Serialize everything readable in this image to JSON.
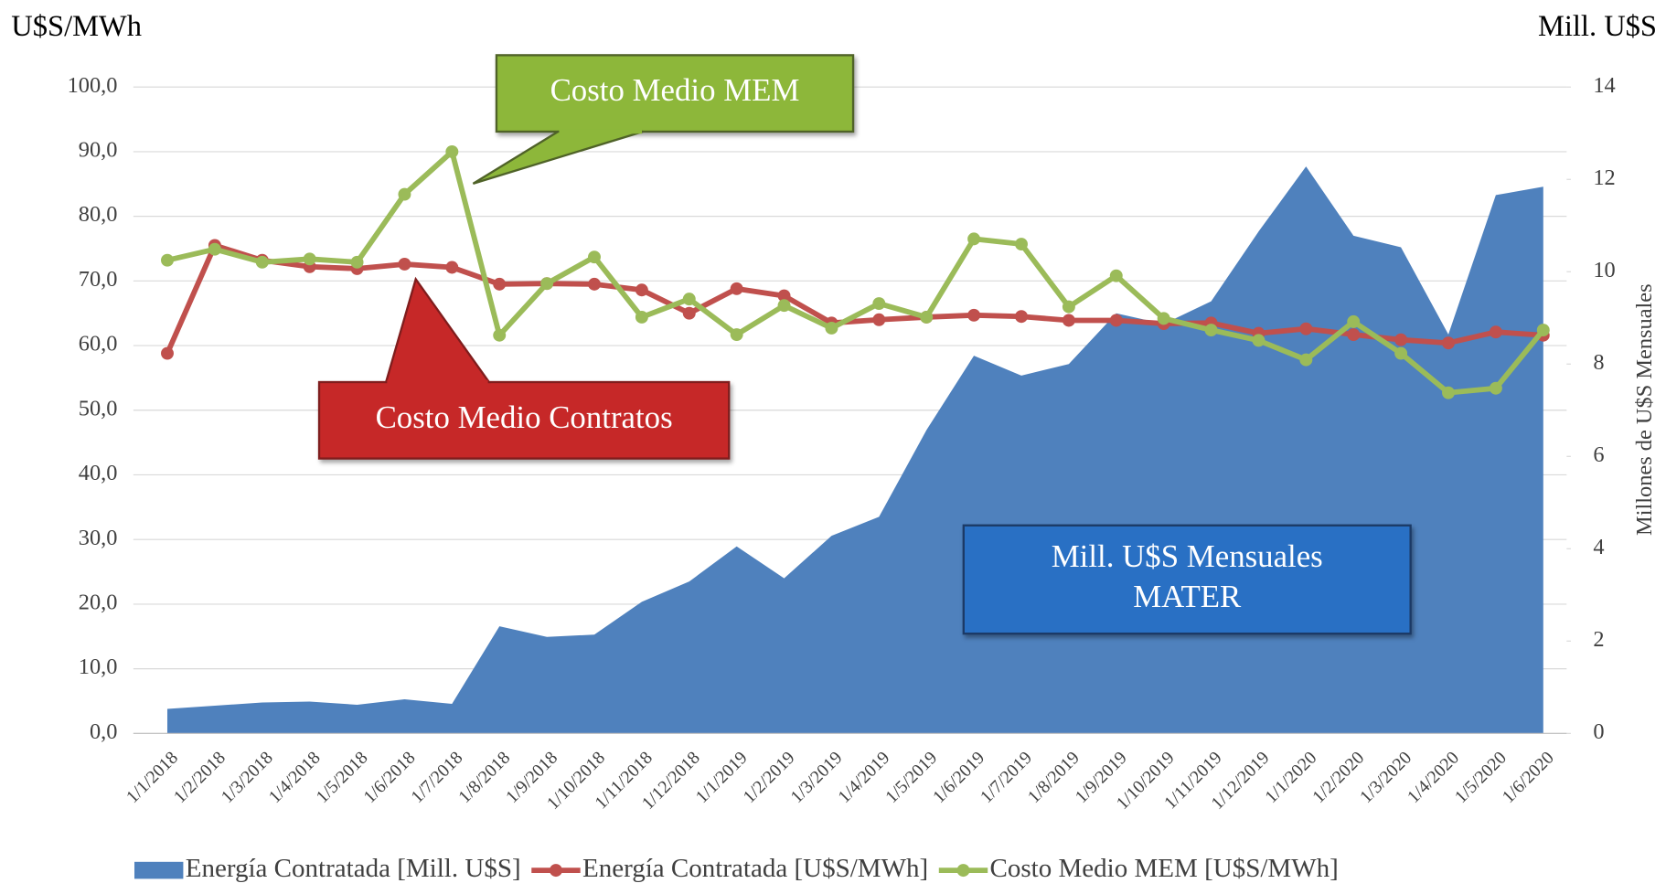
{
  "chart_data": {
    "type": "combo",
    "y_label": "U$S/MWh",
    "y2_top_label": "Mill. U$S",
    "y2_label": "Millones  de U$S Mensuales",
    "categories": [
      "1/1/2018",
      "1/2/2018",
      "1/3/2018",
      "1/4/2018",
      "1/5/2018",
      "1/6/2018",
      "1/7/2018",
      "1/8/2018",
      "1/9/2018",
      "1/10/2018",
      "1/11/2018",
      "1/12/2018",
      "1/1/2019",
      "1/2/2019",
      "1/3/2019",
      "1/4/2019",
      "1/5/2019",
      "1/6/2019",
      "1/7/2019",
      "1/8/2019",
      "1/9/2019",
      "1/10/2019",
      "1/11/2019",
      "1/12/2019",
      "1/1/2020",
      "1/2/2020",
      "1/3/2020",
      "1/4/2020",
      "1/5/2020",
      "1/6/2020"
    ],
    "series": [
      {
        "name": "Energía Contratada [Mill. U$S]",
        "type": "area",
        "axis": "y2",
        "color": "#4f81bd",
        "values": [
          0.53,
          0.6,
          0.67,
          0.69,
          0.62,
          0.74,
          0.64,
          2.32,
          2.09,
          2.14,
          2.85,
          3.29,
          4.05,
          3.36,
          4.28,
          4.69,
          6.57,
          8.18,
          7.75,
          8.0,
          9.1,
          8.87,
          9.36,
          10.87,
          12.28,
          10.78,
          10.53,
          8.64,
          11.66,
          11.84
        ]
      },
      {
        "name": "Energía Contratada [U$S/MWh]",
        "type": "line",
        "axis": "y",
        "color": "#c0504d",
        "values": [
          58.8,
          75.5,
          73.2,
          72.2,
          71.9,
          72.6,
          72.1,
          69.5,
          69.6,
          69.5,
          68.6,
          65.0,
          68.8,
          67.7,
          63.5,
          64.0,
          64.4,
          64.7,
          64.5,
          63.9,
          63.9,
          63.4,
          63.5,
          61.9,
          62.6,
          61.7,
          60.9,
          60.4,
          62.1,
          61.6
        ]
      },
      {
        "name": "Costo Medio MEM [U$S/MWh]",
        "type": "line",
        "axis": "y",
        "color": "#9bbb59",
        "values": [
          73.2,
          74.9,
          72.9,
          73.4,
          72.9,
          83.4,
          90.0,
          61.6,
          69.6,
          73.7,
          64.4,
          67.2,
          61.7,
          66.2,
          62.7,
          66.5,
          64.4,
          76.5,
          75.7,
          66.0,
          70.8,
          64.2,
          62.4,
          60.8,
          57.8,
          63.7,
          58.8,
          52.7,
          53.4,
          62.4
        ]
      }
    ],
    "ylim": [
      0,
      100
    ],
    "yticks": [
      {
        "value": 0,
        "label": "0,0"
      },
      {
        "value": 10,
        "label": "10,0"
      },
      {
        "value": 20,
        "label": "20,0"
      },
      {
        "value": 30,
        "label": "30,0"
      },
      {
        "value": 40,
        "label": "40,0"
      },
      {
        "value": 50,
        "label": "50,0"
      },
      {
        "value": 60,
        "label": "60,0"
      },
      {
        "value": 70,
        "label": "70,0"
      },
      {
        "value": 80,
        "label": "80,0"
      },
      {
        "value": 90,
        "label": "90,0"
      },
      {
        "value": 100,
        "label": "100,0"
      }
    ],
    "y2lim": [
      0,
      14
    ],
    "y2ticks": [
      0,
      2,
      4,
      6,
      8,
      10,
      12,
      14
    ],
    "grid": true,
    "legend": "bottom",
    "annotations": [
      {
        "lines": [
          "Costo Medio MEM"
        ],
        "color": "#8db73a"
      },
      {
        "lines": [
          "Costo Medio Contratos"
        ],
        "color": "#c62828"
      },
      {
        "lines": [
          "Mill. U$S Mensuales",
          "MATER"
        ],
        "color": "#2970c4"
      }
    ]
  }
}
